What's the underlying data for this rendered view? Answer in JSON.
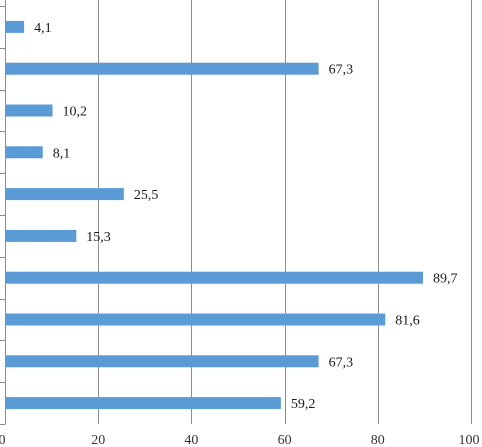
{
  "chart_data": {
    "type": "bar",
    "orientation": "horizontal",
    "values": [
      4.1,
      67.3,
      10.2,
      8.1,
      25.5,
      15.3,
      89.7,
      81.6,
      67.3,
      59.2
    ],
    "value_labels": [
      "4,1",
      "67,3",
      "10,2",
      "8,1",
      "25,5",
      "15,3",
      "89,7",
      "81,6",
      "67,3",
      "59,2"
    ],
    "xlim": [
      0,
      100
    ],
    "x_ticks": [
      0,
      20,
      40,
      60,
      80,
      100
    ],
    "x_tick_labels": [
      "0",
      "20",
      "40",
      "60",
      "80",
      "100"
    ],
    "grid": "vertical",
    "title": "",
    "xlabel": "",
    "ylabel": "",
    "colors": {
      "bar": "#5b9bd5",
      "grid": "#8c8c8c",
      "axis": "#8c8c8c"
    }
  }
}
